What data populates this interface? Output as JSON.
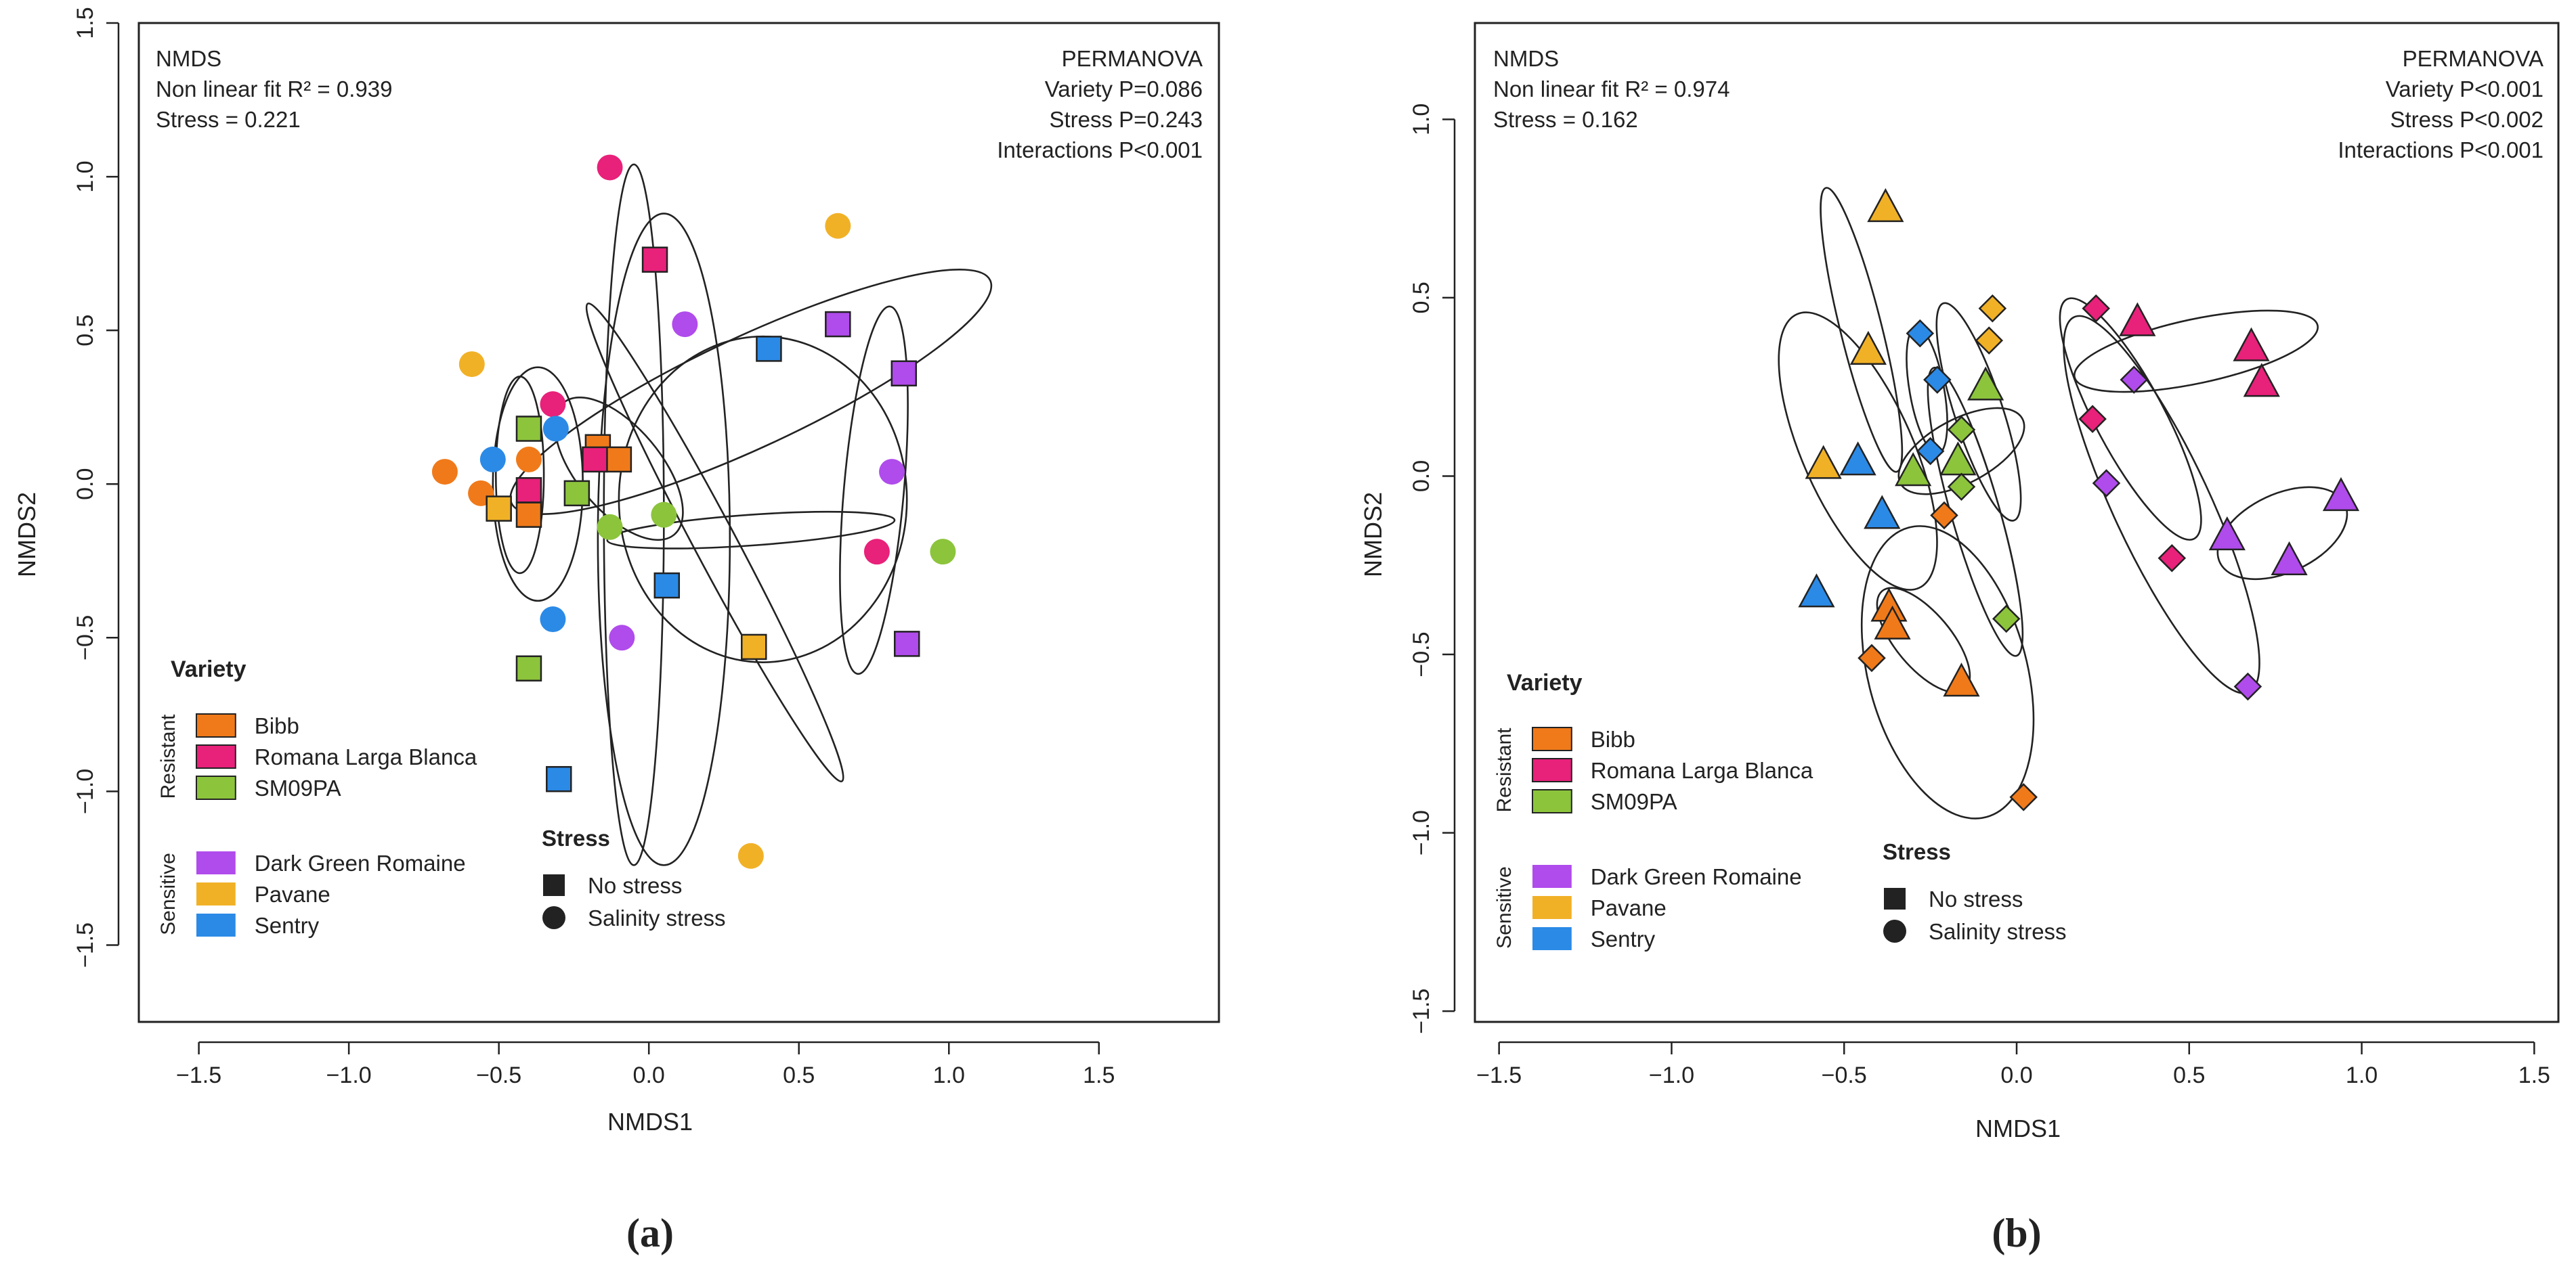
{
  "panel_a_label": "(a)",
  "panel_b_label": "(b)",
  "colors": {
    "Bibb": "#f07a1a",
    "Romana Larga Blanca": "#e8217a",
    "SM09PA": "#8cc43c",
    "Dark Green Romaine": "#b04bec",
    "Pavane": "#f1b127",
    "Sentry": "#2b8ae6"
  },
  "legend": {
    "variety_title": "Variety",
    "resistant_label": "Resistant",
    "sensitive_label": "Sensitive",
    "resistant": [
      "Bibb",
      "Romana Larga Blanca",
      "SM09PA"
    ],
    "sensitive": [
      "Dark Green Romaine",
      "Pavane",
      "Sentry"
    ],
    "stress_title": "Stress",
    "no_stress": "No stress",
    "salinity_stress": "Salinity stress"
  },
  "chart_data": [
    {
      "type": "scatter",
      "panel": "a",
      "xlabel": "NMDS1",
      "ylabel": "NMDS2",
      "xlim": [
        -1.7,
        1.9
      ],
      "ylim": [
        -1.75,
        1.5
      ],
      "xticks": [
        "−1.5",
        "−1.0",
        "−0.5",
        "0.0",
        "0.5",
        "1.0",
        "1.5"
      ],
      "xtick_values": [
        -1.5,
        -1.0,
        -0.5,
        0.0,
        0.5,
        1.0,
        1.5
      ],
      "yticks": [
        "−1.5",
        "−1.0",
        "−0.5",
        "0.0",
        "0.5",
        "1.0",
        "1.5"
      ],
      "ytick_values": [
        -1.5,
        -1.0,
        -0.5,
        0.0,
        0.5,
        1.0,
        1.5
      ],
      "annot_left": [
        "NMDS",
        "Non linear fit R² = 0.939",
        "Stress = 0.221"
      ],
      "annot_right": [
        "PERMANOVA",
        "Variety P=0.086",
        "Stress P=0.243",
        "Interactions P<0.001"
      ],
      "points": [
        {
          "v": "Bibb",
          "s": "square",
          "x": -0.4,
          "y": -0.1
        },
        {
          "v": "Bibb",
          "s": "square",
          "x": -0.17,
          "y": 0.12
        },
        {
          "v": "Bibb",
          "s": "square",
          "x": -0.1,
          "y": 0.08
        },
        {
          "v": "Bibb",
          "s": "circle",
          "x": -0.68,
          "y": 0.04
        },
        {
          "v": "Bibb",
          "s": "circle",
          "x": -0.56,
          "y": -0.03
        },
        {
          "v": "Bibb",
          "s": "circle",
          "x": -0.4,
          "y": 0.08
        },
        {
          "v": "Romana Larga Blanca",
          "s": "square",
          "x": 0.02,
          "y": 0.73
        },
        {
          "v": "Romana Larga Blanca",
          "s": "square",
          "x": -0.4,
          "y": -0.02
        },
        {
          "v": "Romana Larga Blanca",
          "s": "square",
          "x": -0.18,
          "y": 0.08
        },
        {
          "v": "Romana Larga Blanca",
          "s": "circle",
          "x": -0.13,
          "y": 1.03
        },
        {
          "v": "Romana Larga Blanca",
          "s": "circle",
          "x": -0.32,
          "y": 0.26
        },
        {
          "v": "Romana Larga Blanca",
          "s": "circle",
          "x": 0.76,
          "y": -0.22
        },
        {
          "v": "SM09PA",
          "s": "square",
          "x": -0.4,
          "y": 0.18
        },
        {
          "v": "SM09PA",
          "s": "square",
          "x": -0.24,
          "y": -0.03
        },
        {
          "v": "SM09PA",
          "s": "square",
          "x": -0.4,
          "y": -0.6
        },
        {
          "v": "SM09PA",
          "s": "circle",
          "x": -0.13,
          "y": -0.14
        },
        {
          "v": "SM09PA",
          "s": "circle",
          "x": 0.05,
          "y": -0.1
        },
        {
          "v": "SM09PA",
          "s": "circle",
          "x": 0.98,
          "y": -0.22
        },
        {
          "v": "Dark Green Romaine",
          "s": "square",
          "x": 0.63,
          "y": 0.52
        },
        {
          "v": "Dark Green Romaine",
          "s": "square",
          "x": 0.85,
          "y": 0.36
        },
        {
          "v": "Dark Green Romaine",
          "s": "square",
          "x": 0.86,
          "y": -0.52
        },
        {
          "v": "Dark Green Romaine",
          "s": "circle",
          "x": 0.12,
          "y": 0.52
        },
        {
          "v": "Dark Green Romaine",
          "s": "circle",
          "x": 0.81,
          "y": 0.04
        },
        {
          "v": "Dark Green Romaine",
          "s": "circle",
          "x": -0.09,
          "y": -0.5
        },
        {
          "v": "Pavane",
          "s": "square",
          "x": -0.5,
          "y": -0.08
        },
        {
          "v": "Pavane",
          "s": "square",
          "x": 0.35,
          "y": -0.53
        },
        {
          "v": "Pavane",
          "s": "circle",
          "x": -0.59,
          "y": 0.39
        },
        {
          "v": "Pavane",
          "s": "circle",
          "x": 0.63,
          "y": 0.84
        },
        {
          "v": "Pavane",
          "s": "circle",
          "x": 0.34,
          "y": -1.21
        },
        {
          "v": "Sentry",
          "s": "square",
          "x": 0.4,
          "y": 0.44
        },
        {
          "v": "Sentry",
          "s": "square",
          "x": 0.06,
          "y": -0.33
        },
        {
          "v": "Sentry",
          "s": "square",
          "x": -0.3,
          "y": -0.96
        },
        {
          "v": "Sentry",
          "s": "circle",
          "x": -0.52,
          "y": 0.08
        },
        {
          "v": "Sentry",
          "s": "circle",
          "x": -0.31,
          "y": 0.18
        },
        {
          "v": "Sentry",
          "s": "circle",
          "x": -0.32,
          "y": -0.44
        }
      ],
      "ellipses": [
        {
          "cx": -0.05,
          "cy": -0.1,
          "rx": 0.1,
          "ry": 1.14,
          "angle": 0
        },
        {
          "cx": -0.43,
          "cy": 0.03,
          "rx": 0.08,
          "ry": 0.32,
          "angle": 0
        },
        {
          "cx": 0.22,
          "cy": -0.19,
          "rx": 0.07,
          "ry": 0.88,
          "angle": 28
        },
        {
          "cx": -0.37,
          "cy": 0.0,
          "rx": 0.15,
          "ry": 0.38,
          "angle": 0
        },
        {
          "cx": 0.34,
          "cy": -0.15,
          "rx": 0.48,
          "ry": 0.05,
          "angle": 4
        },
        {
          "cx": 0.05,
          "cy": -0.18,
          "rx": 0.22,
          "ry": 1.06,
          "angle": 0
        },
        {
          "cx": 0.38,
          "cy": -0.05,
          "rx": 0.48,
          "ry": 0.53,
          "angle": 0
        },
        {
          "cx": 0.75,
          "cy": -0.02,
          "rx": 0.1,
          "ry": 0.6,
          "angle": -5
        },
        {
          "cx": -0.1,
          "cy": 0.05,
          "rx": 0.14,
          "ry": 0.28,
          "angle": 40
        },
        {
          "cx": 0.34,
          "cy": 0.3,
          "rx": 0.88,
          "ry": 0.18,
          "angle": 25
        }
      ]
    },
    {
      "type": "scatter",
      "panel": "b",
      "xlabel": "NMDS1",
      "ylabel": "NMDS2",
      "xlim": [
        -1.57,
        1.57
      ],
      "ylim": [
        -1.53,
        1.27
      ],
      "xticks": [
        "−1.5",
        "−1.0",
        "−0.5",
        "0.0",
        "0.5",
        "1.0",
        "1.5"
      ],
      "xtick_values": [
        -1.5,
        -1.0,
        -0.5,
        0.0,
        0.5,
        1.0,
        1.5
      ],
      "yticks": [
        "−1.5",
        "−1.0",
        "−0.5",
        "0.0",
        "0.5",
        "1.0"
      ],
      "ytick_values": [
        -1.5,
        -1.0,
        -0.5,
        0.0,
        0.5,
        1.0
      ],
      "annot_left": [
        "NMDS",
        "Non linear fit R² = 0.974",
        "Stress = 0.162"
      ],
      "annot_right": [
        "PERMANOVA",
        "Variety P<0.001",
        "Stress P<0.002",
        "Interactions P<0.001"
      ],
      "points": [
        {
          "v": "Bibb",
          "s": "triangle",
          "x": -0.37,
          "y": -0.37
        },
        {
          "v": "Bibb",
          "s": "triangle",
          "x": -0.36,
          "y": -0.42
        },
        {
          "v": "Bibb",
          "s": "triangle",
          "x": -0.16,
          "y": -0.58
        },
        {
          "v": "Bibb",
          "s": "diamond",
          "x": -0.21,
          "y": -0.11
        },
        {
          "v": "Bibb",
          "s": "diamond",
          "x": -0.42,
          "y": -0.51
        },
        {
          "v": "Bibb",
          "s": "diamond",
          "x": 0.02,
          "y": -0.9
        },
        {
          "v": "Romana Larga Blanca",
          "s": "triangle",
          "x": 0.35,
          "y": 0.43
        },
        {
          "v": "Romana Larga Blanca",
          "s": "triangle",
          "x": 0.68,
          "y": 0.36
        },
        {
          "v": "Romana Larga Blanca",
          "s": "triangle",
          "x": 0.71,
          "y": 0.26
        },
        {
          "v": "Romana Larga Blanca",
          "s": "diamond",
          "x": 0.23,
          "y": 0.47
        },
        {
          "v": "Romana Larga Blanca",
          "s": "diamond",
          "x": 0.22,
          "y": 0.16
        },
        {
          "v": "Romana Larga Blanca",
          "s": "diamond",
          "x": 0.45,
          "y": -0.23
        },
        {
          "v": "SM09PA",
          "s": "triangle",
          "x": -0.09,
          "y": 0.25
        },
        {
          "v": "SM09PA",
          "s": "triangle",
          "x": -0.3,
          "y": 0.01
        },
        {
          "v": "SM09PA",
          "s": "triangle",
          "x": -0.17,
          "y": 0.04
        },
        {
          "v": "SM09PA",
          "s": "diamond",
          "x": -0.16,
          "y": 0.13
        },
        {
          "v": "SM09PA",
          "s": "diamond",
          "x": -0.16,
          "y": -0.03
        },
        {
          "v": "SM09PA",
          "s": "diamond",
          "x": -0.03,
          "y": -0.4
        },
        {
          "v": "Dark Green Romaine",
          "s": "triangle",
          "x": 0.61,
          "y": -0.17
        },
        {
          "v": "Dark Green Romaine",
          "s": "triangle",
          "x": 0.79,
          "y": -0.24
        },
        {
          "v": "Dark Green Romaine",
          "s": "triangle",
          "x": 0.94,
          "y": -0.06
        },
        {
          "v": "Dark Green Romaine",
          "s": "diamond",
          "x": 0.34,
          "y": 0.27
        },
        {
          "v": "Dark Green Romaine",
          "s": "diamond",
          "x": 0.26,
          "y": -0.02
        },
        {
          "v": "Dark Green Romaine",
          "s": "diamond",
          "x": 0.67,
          "y": -0.59
        },
        {
          "v": "Pavane",
          "s": "triangle",
          "x": -0.38,
          "y": 0.75
        },
        {
          "v": "Pavane",
          "s": "triangle",
          "x": -0.43,
          "y": 0.35
        },
        {
          "v": "Pavane",
          "s": "triangle",
          "x": -0.56,
          "y": 0.03
        },
        {
          "v": "Pavane",
          "s": "diamond",
          "x": -0.07,
          "y": 0.47
        },
        {
          "v": "Pavane",
          "s": "diamond",
          "x": -0.08,
          "y": 0.38
        },
        {
          "v": "Sentry",
          "s": "triangle",
          "x": -0.46,
          "y": 0.04
        },
        {
          "v": "Sentry",
          "s": "triangle",
          "x": -0.39,
          "y": -0.11
        },
        {
          "v": "Sentry",
          "s": "triangle",
          "x": -0.58,
          "y": -0.33
        },
        {
          "v": "Sentry",
          "s": "diamond",
          "x": -0.28,
          "y": 0.4
        },
        {
          "v": "Sentry",
          "s": "diamond",
          "x": -0.23,
          "y": 0.27
        },
        {
          "v": "Sentry",
          "s": "diamond",
          "x": -0.25,
          "y": 0.07
        }
      ],
      "ellipses": [
        {
          "cx": -0.45,
          "cy": 0.41,
          "rx": 0.06,
          "ry": 0.41,
          "angle": 14
        },
        {
          "cx": -0.46,
          "cy": 0.07,
          "rx": 0.16,
          "ry": 0.42,
          "angle": 24
        },
        {
          "cx": -0.11,
          "cy": 0.18,
          "rx": 0.07,
          "ry": 0.32,
          "angle": 18
        },
        {
          "cx": -0.16,
          "cy": 0.07,
          "rx": 0.2,
          "ry": 0.09,
          "angle": 28
        },
        {
          "cx": -0.12,
          "cy": -0.1,
          "rx": 0.07,
          "ry": 0.42,
          "angle": 16
        },
        {
          "cx": -0.26,
          "cy": 0.24,
          "rx": 0.05,
          "ry": 0.18,
          "angle": 10
        },
        {
          "cx": -0.27,
          "cy": -0.46,
          "rx": 0.08,
          "ry": 0.18,
          "angle": 40
        },
        {
          "cx": -0.2,
          "cy": -0.55,
          "rx": 0.23,
          "ry": 0.42,
          "angle": 15
        },
        {
          "cx": 0.52,
          "cy": 0.35,
          "rx": 0.36,
          "ry": 0.09,
          "angle": 12
        },
        {
          "cx": 0.33,
          "cy": 0.16,
          "rx": 0.1,
          "ry": 0.38,
          "angle": 28
        },
        {
          "cx": 0.42,
          "cy": -0.08,
          "rx": 0.14,
          "ry": 0.58,
          "angle": 25
        },
        {
          "cx": 0.77,
          "cy": -0.16,
          "rx": 0.2,
          "ry": 0.11,
          "angle": 25
        }
      ]
    }
  ]
}
